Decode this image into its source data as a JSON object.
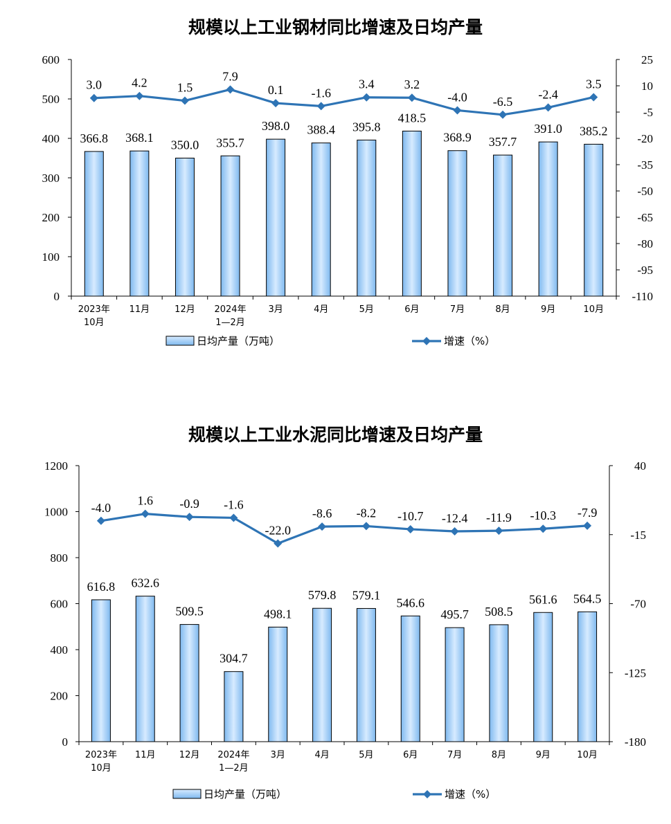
{
  "chart_data": [
    {
      "type": "bar",
      "title": "规模以上工业钢材同比增速及日均产量",
      "categories": [
        [
          "2023年",
          "10月"
        ],
        [
          "11月"
        ],
        [
          "12月"
        ],
        [
          "2024年",
          "1—2月"
        ],
        [
          "3月"
        ],
        [
          "4月"
        ],
        [
          "5月"
        ],
        [
          "6月"
        ],
        [
          "7月"
        ],
        [
          "8月"
        ],
        [
          "9月"
        ],
        [
          "10月"
        ]
      ],
      "series": [
        {
          "name": "日均产量（万吨）",
          "type": "bar",
          "axis": "left",
          "values": [
            366.8,
            368.1,
            350.0,
            355.7,
            398.0,
            388.4,
            395.8,
            418.5,
            368.9,
            357.7,
            391.0,
            385.2
          ]
        },
        {
          "name": "增速（%）",
          "type": "line",
          "axis": "right",
          "values": [
            3.0,
            4.2,
            1.5,
            7.9,
            0.1,
            -1.6,
            3.4,
            3.2,
            -4.0,
            -6.5,
            -2.4,
            3.5
          ]
        }
      ],
      "ylim_left": [
        0,
        600
      ],
      "yticks_left": [
        0,
        100,
        200,
        300,
        400,
        500,
        600
      ],
      "ylim_right": [
        -110,
        25
      ],
      "yticks_right": [
        -110,
        -95,
        -80,
        -65,
        -50,
        -35,
        -20,
        -5,
        10,
        25
      ],
      "legend": "bottom",
      "grid": false
    },
    {
      "type": "bar",
      "title": "规模以上工业水泥同比增速及日均产量",
      "categories": [
        [
          "2023年",
          "10月"
        ],
        [
          "11月"
        ],
        [
          "12月"
        ],
        [
          "2024年",
          "1—2月"
        ],
        [
          "3月"
        ],
        [
          "4月"
        ],
        [
          "5月"
        ],
        [
          "6月"
        ],
        [
          "7月"
        ],
        [
          "8月"
        ],
        [
          "9月"
        ],
        [
          "10月"
        ]
      ],
      "series": [
        {
          "name": "日均产量（万吨）",
          "type": "bar",
          "axis": "left",
          "values": [
            616.8,
            632.6,
            509.5,
            304.7,
            498.1,
            579.8,
            579.1,
            546.6,
            495.7,
            508.5,
            561.6,
            564.5
          ]
        },
        {
          "name": "增速（%）",
          "type": "line",
          "axis": "right",
          "values": [
            -4.0,
            1.6,
            -0.9,
            -1.6,
            -22.0,
            -8.6,
            -8.2,
            -10.7,
            -12.4,
            -11.9,
            -10.3,
            -7.9
          ]
        }
      ],
      "ylim_left": [
        0,
        1200
      ],
      "yticks_left": [
        0,
        200,
        400,
        600,
        800,
        1000,
        1200
      ],
      "ylim_right": [
        -180,
        40
      ],
      "yticks_right": [
        -180,
        -125,
        -70,
        -15,
        40
      ],
      "legend": "bottom",
      "grid": false
    }
  ],
  "colors": {
    "bar_fill_top": "#d7ebff",
    "bar_fill_bottom": "#7fb9ef",
    "bar_stroke": "#000000",
    "line": "#2e74b5",
    "axis": "#000000"
  }
}
